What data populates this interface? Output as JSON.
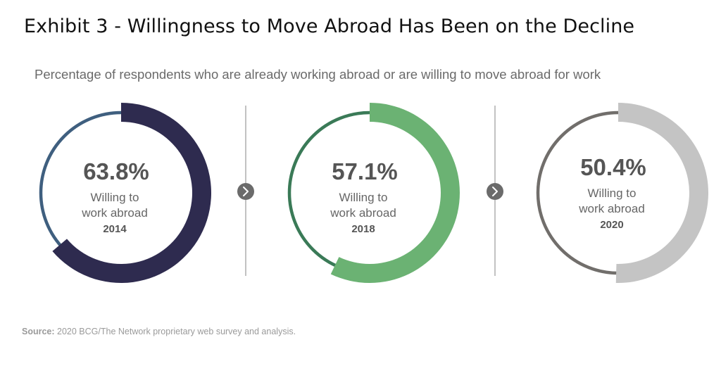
{
  "title": "Exhibit 3 - Willingness to Move Abroad Has Been on the Decline",
  "subtitle": "Percentage of respondents who are already working abroad or are willing to move abroad for work",
  "source_label": "Source:",
  "source_text": " 2020 BCG/The Network proprietary web survey and analysis.",
  "chart_data": {
    "type": "donut",
    "subtitle": "Percentage of respondents who are already working abroad or are willing to move abroad for work",
    "series": [
      {
        "year": "2014",
        "value": 63.8,
        "value_label": "63.8%",
        "label_line1": "Willing to",
        "label_line2": "work abroad",
        "fill_color": "#2e2b4f",
        "ring_color": "#3f5f7f"
      },
      {
        "year": "2018",
        "value": 57.1,
        "value_label": "57.1%",
        "label_line1": "Willing to",
        "label_line2": "work abroad",
        "fill_color": "#6bb273",
        "ring_color": "#3a7a57"
      },
      {
        "year": "2020",
        "value": 50.4,
        "value_label": "50.4%",
        "label_line1": "Willing to",
        "label_line2": "work abroad",
        "fill_color": "#c4c4c4",
        "ring_color": "#716e6b"
      }
    ],
    "arrow_color": "#6b6b6b",
    "divider_color": "#9a9a9a"
  }
}
